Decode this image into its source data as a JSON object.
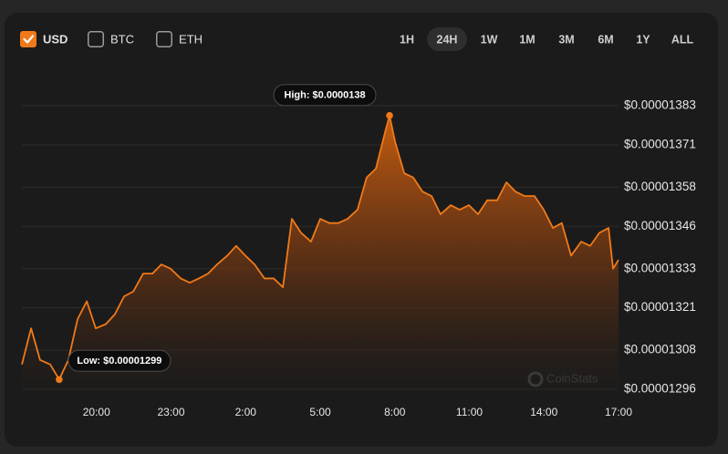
{
  "controls": {
    "currencies": [
      {
        "label": "USD",
        "checked": true
      },
      {
        "label": "BTC",
        "checked": false
      },
      {
        "label": "ETH",
        "checked": false
      }
    ],
    "ranges": [
      {
        "label": "1H",
        "active": false
      },
      {
        "label": "24H",
        "active": true
      },
      {
        "label": "1W",
        "active": false
      },
      {
        "label": "1M",
        "active": false
      },
      {
        "label": "3M",
        "active": false
      },
      {
        "label": "6M",
        "active": false
      },
      {
        "label": "1Y",
        "active": false
      },
      {
        "label": "ALL",
        "active": false
      }
    ]
  },
  "chart_data": {
    "type": "area",
    "watermark": "CoinStats",
    "color": "#f07a1a",
    "grid": true,
    "xlim": [
      0,
      24
    ],
    "xticks": [
      {
        "value": 3,
        "label": "20:00"
      },
      {
        "value": 6,
        "label": "23:00"
      },
      {
        "value": 9,
        "label": "2:00"
      },
      {
        "value": 12,
        "label": "5:00"
      },
      {
        "value": 15,
        "label": "8:00"
      },
      {
        "value": 18,
        "label": "11:00"
      },
      {
        "value": 21,
        "label": "14:00"
      },
      {
        "value": 24,
        "label": "17:00"
      }
    ],
    "ylim": [
      1.296e-05,
      1.383e-05
    ],
    "yticks": [
      {
        "value": 1.383e-05,
        "label": "$0.00001383"
      },
      {
        "value": 1.371e-05,
        "label": "$0.00001371"
      },
      {
        "value": 1.358e-05,
        "label": "$0.00001358"
      },
      {
        "value": 1.346e-05,
        "label": "$0.00001346"
      },
      {
        "value": 1.333e-05,
        "label": "$0.00001333"
      },
      {
        "value": 1.321e-05,
        "label": "$0.00001321"
      },
      {
        "value": 1.308e-05,
        "label": "$0.00001308"
      },
      {
        "value": 1.296e-05,
        "label": "$0.00001296"
      }
    ],
    "x": [
      0,
      0.37,
      0.73,
      1.14,
      1.5,
      1.87,
      2.24,
      2.61,
      2.97,
      3.38,
      3.74,
      4.11,
      4.48,
      4.88,
      5.25,
      5.61,
      5.98,
      6.39,
      6.75,
      7.12,
      7.49,
      7.85,
      8.26,
      8.62,
      8.99,
      9.36,
      9.76,
      10.13,
      10.5,
      10.86,
      11.23,
      11.63,
      12,
      12.37,
      12.73,
      13.1,
      13.5,
      13.87,
      14.24,
      14.61,
      14.79,
      15.01,
      15.38,
      15.74,
      16.11,
      16.48,
      16.84,
      17.25,
      17.61,
      17.98,
      18.35,
      18.72,
      19.12,
      19.49,
      19.85,
      20.22,
      20.62,
      20.99,
      21.36,
      21.72,
      22.09,
      22.5,
      22.86,
      23.23,
      23.6,
      23.78,
      24
    ],
    "values": [
      1.3036e-05,
      1.3147e-05,
      1.305e-05,
      1.3036e-05,
      1.299e-05,
      1.305e-05,
      1.3175e-05,
      1.323e-05,
      1.3147e-05,
      1.316e-05,
      1.319e-05,
      1.3245e-05,
      1.326e-05,
      1.3315e-05,
      1.3315e-05,
      1.3343e-05,
      1.333e-05,
      1.33e-05,
      1.3287e-05,
      1.33e-05,
      1.3315e-05,
      1.3343e-05,
      1.337e-05,
      1.34e-05,
      1.337e-05,
      1.3343e-05,
      1.33e-05,
      1.33e-05,
      1.3273e-05,
      1.3483e-05,
      1.344e-05,
      1.3413e-05,
      1.3483e-05,
      1.347e-05,
      1.347e-05,
      1.3483e-05,
      1.3511e-05,
      1.361e-05,
      1.3637e-05,
      1.3749e-05,
      1.38e-05,
      1.372e-05,
      1.3623e-05,
      1.361e-05,
      1.3567e-05,
      1.3553e-05,
      1.3497e-05,
      1.3525e-05,
      1.3511e-05,
      1.3525e-05,
      1.3497e-05,
      1.354e-05,
      1.354e-05,
      1.3595e-05,
      1.3567e-05,
      1.3553e-05,
      1.3553e-05,
      1.3511e-05,
      1.3455e-05,
      1.347e-05,
      1.337e-05,
      1.3413e-05,
      1.34e-05,
      1.344e-05,
      1.3455e-05,
      1.333e-05,
      1.3357e-05
    ],
    "annotations": [
      {
        "text": "High: $0.0000138",
        "x": 14.79,
        "value": 1.38e-05
      },
      {
        "text": "Low: $0.00001299",
        "x": 1.5,
        "value": 1.299e-05
      }
    ]
  }
}
